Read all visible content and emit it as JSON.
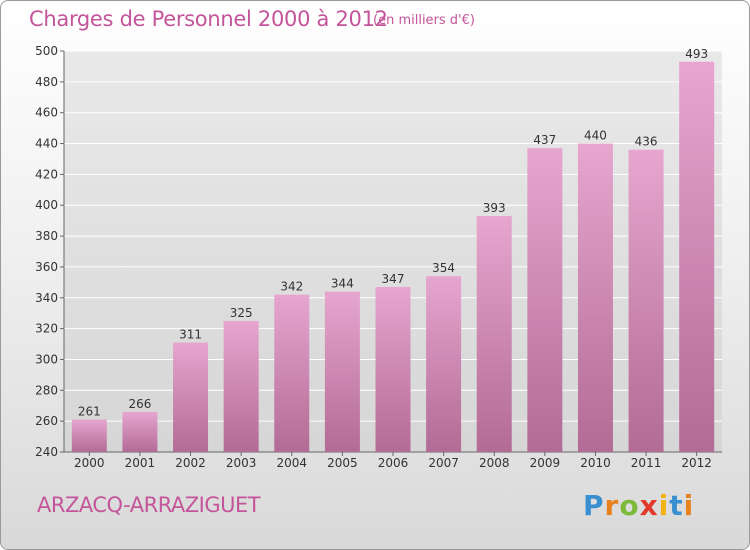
{
  "title": "Charges de Personnel 2000 à 2012",
  "subtitle": "(en milliers d'€)",
  "commune": "ARZACQ-ARRAZIGUET",
  "logo": {
    "text": "Proxiti",
    "letter_colors": [
      "#3a8fd1",
      "#e8821f",
      "#7dba3a",
      "#e23a2a",
      "#f2b311",
      "#3a8fd1",
      "#e8821f"
    ]
  },
  "colors": {
    "bar_top": "#e6a6cf",
    "bar_bottom": "#b26b95",
    "title": "#c4559a",
    "grid": "#ffffff"
  },
  "chart_data": {
    "type": "bar",
    "categories": [
      "2000",
      "2001",
      "2002",
      "2003",
      "2004",
      "2005",
      "2006",
      "2007",
      "2008",
      "2009",
      "2010",
      "2011",
      "2012"
    ],
    "values": [
      261,
      266,
      311,
      325,
      342,
      344,
      347,
      354,
      393,
      437,
      440,
      436,
      493
    ],
    "ylim": [
      240,
      500
    ],
    "yticks": [
      240,
      260,
      280,
      300,
      320,
      340,
      360,
      380,
      400,
      420,
      440,
      460,
      480,
      500
    ],
    "grid": true,
    "data_labels": true
  }
}
